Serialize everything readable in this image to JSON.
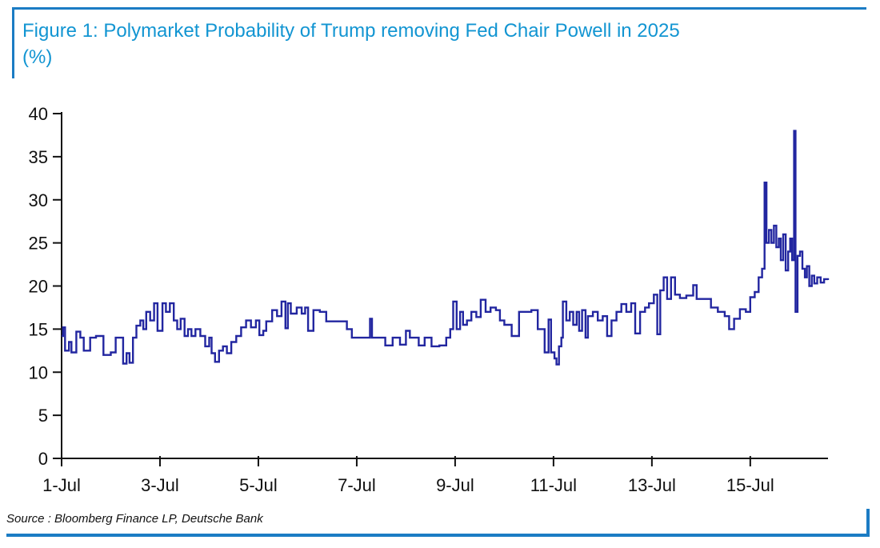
{
  "figure": {
    "title": "Figure 1: Polymarket Probability of Trump removing Fed Chair Powell in 2025",
    "title_unit": "(%)",
    "source_note": "Source : Bloomberg Finance LP, Deutsche Bank",
    "title_color": "#1295d2",
    "frame_color": "#1b7cc4"
  },
  "chart_data": {
    "type": "line",
    "line_style": "step",
    "title": "Figure 1: Polymarket Probability of Trump removing Fed Chair Powell in 2025 (%)",
    "xlabel": "",
    "ylabel": "",
    "grid": false,
    "legend": false,
    "line_color": "#2226a0",
    "axis_color": "#111111",
    "xlim": [
      1,
      16.58
    ],
    "ylim": [
      0,
      40
    ],
    "x_ticks": [
      {
        "v": 1,
        "label": "1-Jul"
      },
      {
        "v": 3,
        "label": "3-Jul"
      },
      {
        "v": 5,
        "label": "5-Jul"
      },
      {
        "v": 7,
        "label": "7-Jul"
      },
      {
        "v": 9,
        "label": "9-Jul"
      },
      {
        "v": 11,
        "label": "11-Jul"
      },
      {
        "v": 13,
        "label": "13-Jul"
      },
      {
        "v": 15,
        "label": "15-Jul"
      }
    ],
    "y_ticks": [
      {
        "v": 0,
        "label": "0"
      },
      {
        "v": 5,
        "label": "5"
      },
      {
        "v": 10,
        "label": "10"
      },
      {
        "v": 15,
        "label": "15"
      },
      {
        "v": 20,
        "label": "20"
      },
      {
        "v": 25,
        "label": "25"
      },
      {
        "v": 30,
        "label": "30"
      },
      {
        "v": 35,
        "label": "35"
      },
      {
        "v": 40,
        "label": "40"
      }
    ],
    "series": [
      {
        "name": "probability",
        "points": [
          [
            1.0,
            14.2
          ],
          [
            1.03,
            15.2
          ],
          [
            1.07,
            12.5
          ],
          [
            1.15,
            13.5
          ],
          [
            1.2,
            12.3
          ],
          [
            1.3,
            14.7
          ],
          [
            1.38,
            14.0
          ],
          [
            1.45,
            12.5
          ],
          [
            1.58,
            14.0
          ],
          [
            1.7,
            14.2
          ],
          [
            1.85,
            12.0
          ],
          [
            2.0,
            12.3
          ],
          [
            2.1,
            14.0
          ],
          [
            2.25,
            11.0
          ],
          [
            2.32,
            12.2
          ],
          [
            2.38,
            11.1
          ],
          [
            2.45,
            14.0
          ],
          [
            2.52,
            15.4
          ],
          [
            2.6,
            16.0
          ],
          [
            2.66,
            15.0
          ],
          [
            2.72,
            17.0
          ],
          [
            2.8,
            16.0
          ],
          [
            2.88,
            18.0
          ],
          [
            2.95,
            14.8
          ],
          [
            3.05,
            18.0
          ],
          [
            3.12,
            17.0
          ],
          [
            3.2,
            18.0
          ],
          [
            3.28,
            16.0
          ],
          [
            3.35,
            15.0
          ],
          [
            3.42,
            16.2
          ],
          [
            3.5,
            14.2
          ],
          [
            3.57,
            15.0
          ],
          [
            3.64,
            14.2
          ],
          [
            3.72,
            15.0
          ],
          [
            3.82,
            14.2
          ],
          [
            3.92,
            13.0
          ],
          [
            4.0,
            14.0
          ],
          [
            4.05,
            12.2
          ],
          [
            4.12,
            11.2
          ],
          [
            4.2,
            12.5
          ],
          [
            4.28,
            13.0
          ],
          [
            4.36,
            12.2
          ],
          [
            4.45,
            13.5
          ],
          [
            4.55,
            14.2
          ],
          [
            4.65,
            15.2
          ],
          [
            4.75,
            16.0
          ],
          [
            4.85,
            15.2
          ],
          [
            4.95,
            16.0
          ],
          [
            5.02,
            14.3
          ],
          [
            5.1,
            14.8
          ],
          [
            5.16,
            15.9
          ],
          [
            5.28,
            17.2
          ],
          [
            5.38,
            16.5
          ],
          [
            5.47,
            18.2
          ],
          [
            5.55,
            15.1
          ],
          [
            5.6,
            18.0
          ],
          [
            5.66,
            16.8
          ],
          [
            5.78,
            17.5
          ],
          [
            5.88,
            16.8
          ],
          [
            5.95,
            17.5
          ],
          [
            6.01,
            14.8
          ],
          [
            6.12,
            17.2
          ],
          [
            6.25,
            17.0
          ],
          [
            6.38,
            15.9
          ],
          [
            6.6,
            15.9
          ],
          [
            6.8,
            15.0
          ],
          [
            6.9,
            14.0
          ],
          [
            7.1,
            14.0
          ],
          [
            7.27,
            16.2
          ],
          [
            7.31,
            14.0
          ],
          [
            7.48,
            14.0
          ],
          [
            7.58,
            13.1
          ],
          [
            7.73,
            14.0
          ],
          [
            7.88,
            13.2
          ],
          [
            8.0,
            14.8
          ],
          [
            8.08,
            14.0
          ],
          [
            8.26,
            13.1
          ],
          [
            8.38,
            14.0
          ],
          [
            8.52,
            13.0
          ],
          [
            8.68,
            13.1
          ],
          [
            8.82,
            14.0
          ],
          [
            8.9,
            15.0
          ],
          [
            8.96,
            18.2
          ],
          [
            9.03,
            15.0
          ],
          [
            9.1,
            17.0
          ],
          [
            9.16,
            15.5
          ],
          [
            9.24,
            16.0
          ],
          [
            9.33,
            17.0
          ],
          [
            9.43,
            16.4
          ],
          [
            9.52,
            18.4
          ],
          [
            9.62,
            17.0
          ],
          [
            9.72,
            17.5
          ],
          [
            9.83,
            17.2
          ],
          [
            9.91,
            16.0
          ],
          [
            10.0,
            15.5
          ],
          [
            10.15,
            14.2
          ],
          [
            10.3,
            17.0
          ],
          [
            10.55,
            17.2
          ],
          [
            10.68,
            15.0
          ],
          [
            10.82,
            12.3
          ],
          [
            10.9,
            16.1
          ],
          [
            10.95,
            12.3
          ],
          [
            11.02,
            11.6
          ],
          [
            11.06,
            10.9
          ],
          [
            11.11,
            13.0
          ],
          [
            11.16,
            14.0
          ],
          [
            11.19,
            18.2
          ],
          [
            11.26,
            16.0
          ],
          [
            11.33,
            17.0
          ],
          [
            11.4,
            15.5
          ],
          [
            11.47,
            17.0
          ],
          [
            11.52,
            14.8
          ],
          [
            11.58,
            17.2
          ],
          [
            11.65,
            14.0
          ],
          [
            11.7,
            16.5
          ],
          [
            11.8,
            17.0
          ],
          [
            11.9,
            16.0
          ],
          [
            12.0,
            16.5
          ],
          [
            12.09,
            14.2
          ],
          [
            12.18,
            16.0
          ],
          [
            12.28,
            17.0
          ],
          [
            12.38,
            17.9
          ],
          [
            12.48,
            17.0
          ],
          [
            12.58,
            18.0
          ],
          [
            12.66,
            14.5
          ],
          [
            12.76,
            17.0
          ],
          [
            12.86,
            17.5
          ],
          [
            12.94,
            18.0
          ],
          [
            13.04,
            19.0
          ],
          [
            13.11,
            14.4
          ],
          [
            13.17,
            19.5
          ],
          [
            13.24,
            21.0
          ],
          [
            13.31,
            18.5
          ],
          [
            13.39,
            21.0
          ],
          [
            13.47,
            19.0
          ],
          [
            13.57,
            18.6
          ],
          [
            13.7,
            18.9
          ],
          [
            13.84,
            20.1
          ],
          [
            13.91,
            18.5
          ],
          [
            14.05,
            18.5
          ],
          [
            14.2,
            17.5
          ],
          [
            14.34,
            17.0
          ],
          [
            14.48,
            16.5
          ],
          [
            14.57,
            15.0
          ],
          [
            14.67,
            16.2
          ],
          [
            14.79,
            17.3
          ],
          [
            14.91,
            17.0
          ],
          [
            15.0,
            18.7
          ],
          [
            15.09,
            19.3
          ],
          [
            15.17,
            21.0
          ],
          [
            15.24,
            22.0
          ],
          [
            15.29,
            32.0
          ],
          [
            15.33,
            25.0
          ],
          [
            15.38,
            26.5
          ],
          [
            15.43,
            25.0
          ],
          [
            15.48,
            27.0
          ],
          [
            15.53,
            24.5
          ],
          [
            15.58,
            25.5
          ],
          [
            15.62,
            23.0
          ],
          [
            15.67,
            26.0
          ],
          [
            15.72,
            21.8
          ],
          [
            15.77,
            24.0
          ],
          [
            15.81,
            25.5
          ],
          [
            15.85,
            23.0
          ],
          [
            15.89,
            38.0
          ],
          [
            15.92,
            17.0
          ],
          [
            15.96,
            23.5
          ],
          [
            16.01,
            24.0
          ],
          [
            16.06,
            22.0
          ],
          [
            16.11,
            21.0
          ],
          [
            16.15,
            22.3
          ],
          [
            16.2,
            20.0
          ],
          [
            16.25,
            21.2
          ],
          [
            16.3,
            20.3
          ],
          [
            16.36,
            21.0
          ],
          [
            16.43,
            20.4
          ],
          [
            16.5,
            20.8
          ],
          [
            16.58,
            20.7
          ]
        ]
      }
    ]
  }
}
